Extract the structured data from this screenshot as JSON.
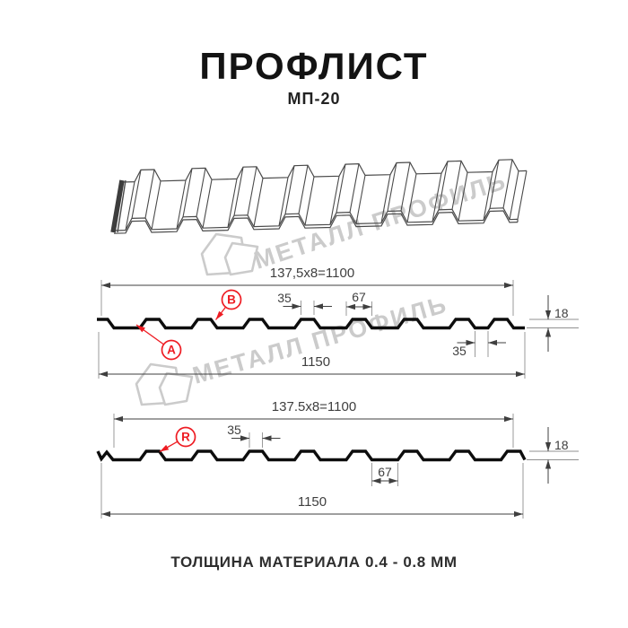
{
  "title": "ПРОФЛИСТ",
  "subtitle": "МП-20",
  "footer": "ТОЛЩИНА МАТЕРИАЛА 0.4 - 0.8 ММ",
  "watermark": {
    "text": "МЕТАЛЛ ПРОФИЛЬ",
    "color": "#cbcbcb"
  },
  "colors": {
    "accent_red": "#ee1c23",
    "profile_line": "#0d0d0d",
    "dim_line": "#3f3f3f",
    "witness_line": "#909090",
    "drawing_line": "#4a4a4a"
  },
  "sheet_3d": {
    "description": "perspective view of corrugated profiled sheet",
    "ribs": 8
  },
  "sections": {
    "ab": {
      "label_a": "A",
      "label_b": "B",
      "dim_top_total": "137,5x8=1100",
      "dim_crest_top": "35",
      "dim_crest_base": "67",
      "dim_height": "18",
      "dim_narrow_valley": "35",
      "dim_full_width": "1150"
    },
    "r": {
      "label_r": "R",
      "dim_top_total": "137.5x8=1100",
      "dim_crest_top": "35",
      "dim_height": "18",
      "dim_valley": "67",
      "dim_full_width": "1150"
    }
  }
}
